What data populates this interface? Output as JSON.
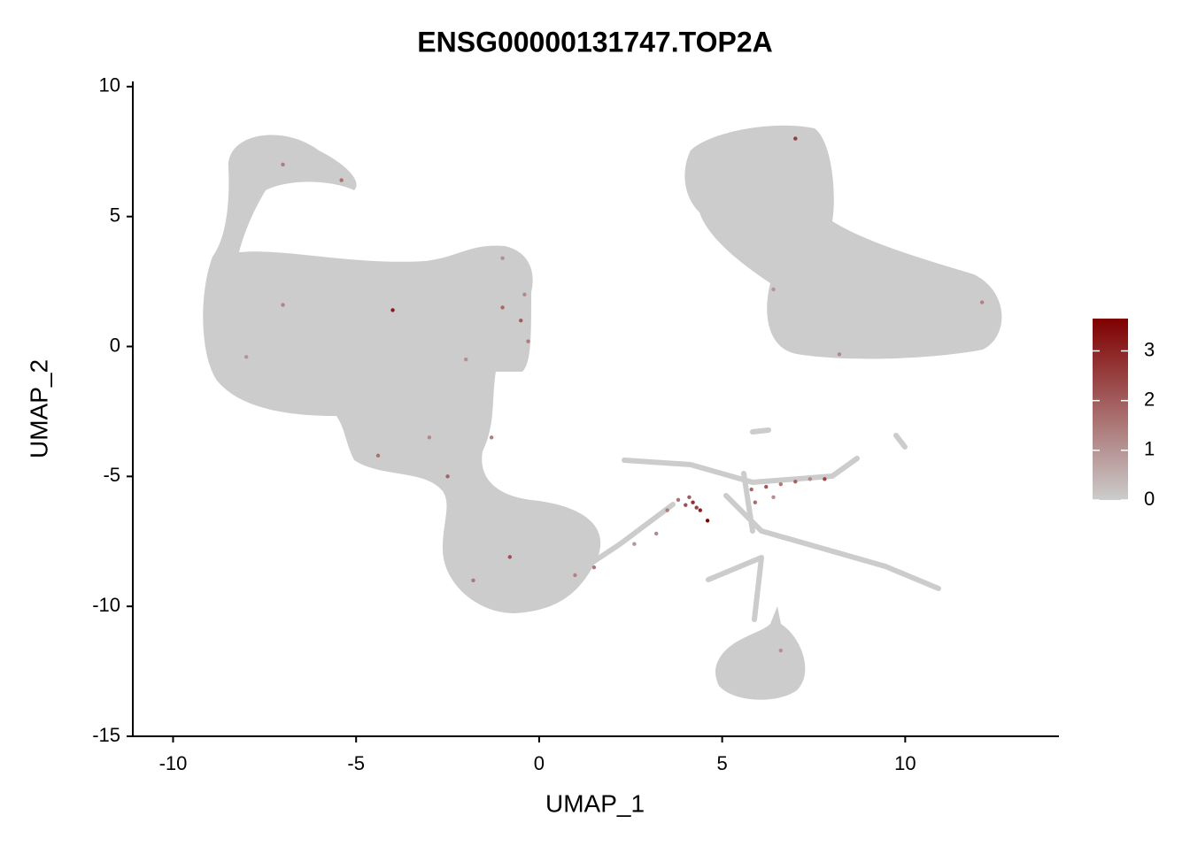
{
  "chart_data": {
    "type": "scatter",
    "title": "ENSG00000131747.TOP2A",
    "x_label": "UMAP_1",
    "y_label": "UMAP_2",
    "xlim": [
      -11.1,
      14.2
    ],
    "ylim": [
      -15,
      10.2
    ],
    "xticks": [
      -10,
      -5,
      0,
      5,
      10
    ],
    "yticks": [
      -15,
      -10,
      -5,
      0,
      5,
      10
    ],
    "colorbar": {
      "lim": [
        0,
        3.65
      ],
      "ticks": [
        0,
        1,
        2,
        3
      ],
      "colors": [
        "#cccccc",
        "#7f0000"
      ]
    },
    "x": [
      4.0,
      4.2,
      3.8,
      4.4,
      4.6,
      3.5,
      4.1,
      4.3,
      5.8,
      6.2,
      6.6,
      7.0,
      7.4,
      7.8,
      6.4,
      5.9,
      0.98,
      3.2,
      2.6,
      1.5,
      -1.0,
      -0.4,
      -0.5,
      -0.3,
      -4.0,
      -2.0,
      -7.0,
      -8.0,
      -3.0,
      -4.4,
      -2.5,
      -1.3,
      -0.8,
      -1.8,
      -7.0,
      -5.4,
      -1.0,
      7.0,
      12.1,
      6.4,
      8.2,
      6.6
    ],
    "y": [
      -6.1,
      -6.0,
      -5.9,
      -6.3,
      -6.7,
      -6.3,
      -5.8,
      -6.2,
      -5.5,
      -5.4,
      -5.3,
      -5.2,
      -5.1,
      -5.1,
      -5.8,
      -6.0,
      -8.8,
      -7.2,
      -7.6,
      -8.5,
      1.5,
      2.0,
      1.0,
      0.2,
      1.4,
      -0.5,
      1.6,
      -0.4,
      -3.5,
      -4.2,
      -5.0,
      -3.5,
      -8.1,
      -9.0,
      7.0,
      6.4,
      3.4,
      8.0,
      1.7,
      2.2,
      -0.3,
      -11.7
    ],
    "values": [
      2.2,
      2.8,
      1.6,
      3.1,
      3.6,
      1.4,
      2.0,
      2.5,
      1.8,
      2.1,
      1.5,
      1.9,
      1.2,
      2.4,
      1.1,
      1.7,
      1.3,
      1.2,
      1.0,
      1.5,
      1.8,
      1.2,
      2.0,
      1.4,
      3.2,
      1.1,
      1.3,
      1.0,
      1.2,
      1.6,
      1.9,
      1.4,
      2.2,
      1.5,
      1.4,
      1.6,
      1.1,
      2.6,
      1.3,
      1.0,
      1.2,
      1.1
    ]
  }
}
